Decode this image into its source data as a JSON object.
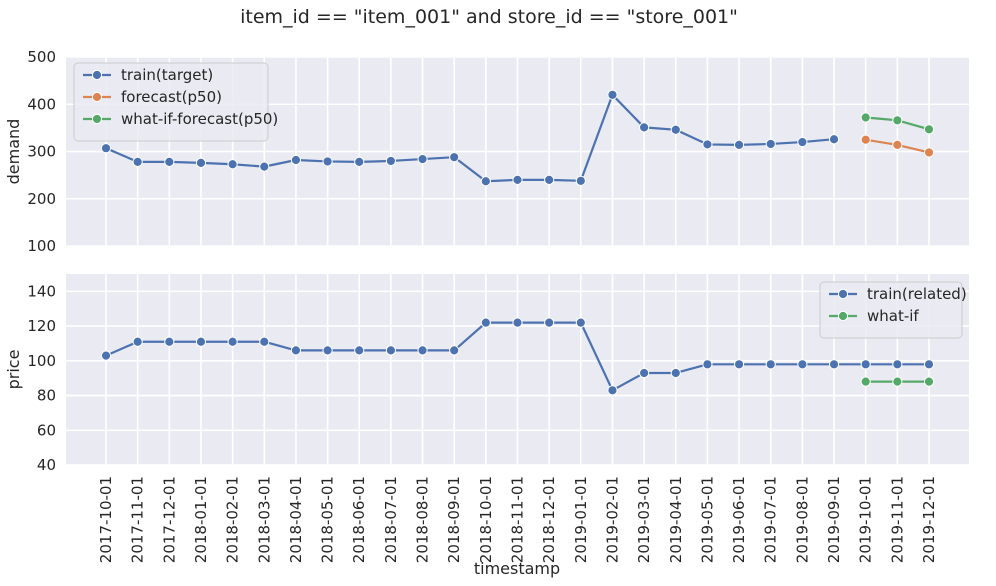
{
  "chart_data": {
    "type": "line",
    "title": "item_id == \"item_001\" and store_id == \"store_001\"",
    "xlabel": "timestamp",
    "x": [
      "2017-10-01",
      "2017-11-01",
      "2017-12-01",
      "2018-01-01",
      "2018-02-01",
      "2018-03-01",
      "2018-04-01",
      "2018-05-01",
      "2018-06-01",
      "2018-07-01",
      "2018-08-01",
      "2018-09-01",
      "2018-10-01",
      "2018-11-01",
      "2018-12-01",
      "2019-01-01",
      "2019-02-01",
      "2019-03-01",
      "2019-04-01",
      "2019-05-01",
      "2019-06-01",
      "2019-07-01",
      "2019-08-01",
      "2019-09-01",
      "2019-10-01",
      "2019-11-01",
      "2019-12-01"
    ],
    "panels": [
      {
        "ylabel": "demand",
        "ylim": [
          100,
          500
        ],
        "yticks": [
          100,
          200,
          300,
          400,
          500
        ],
        "legend_position": "upper-left",
        "series": [
          {
            "name": "train(target)",
            "color": "#4c72b0",
            "x": [
              "2017-10-01",
              "2017-11-01",
              "2017-12-01",
              "2018-01-01",
              "2018-02-01",
              "2018-03-01",
              "2018-04-01",
              "2018-05-01",
              "2018-06-01",
              "2018-07-01",
              "2018-08-01",
              "2018-09-01",
              "2018-10-01",
              "2018-11-01",
              "2018-12-01",
              "2019-01-01",
              "2019-02-01",
              "2019-03-01",
              "2019-04-01",
              "2019-05-01",
              "2019-06-01",
              "2019-07-01",
              "2019-08-01",
              "2019-09-01"
            ],
            "values": [
              307,
              278,
              278,
              276,
              273,
              268,
              282,
              279,
              278,
              280,
              284,
              288,
              237,
              240,
              240,
              238,
              420,
              351,
              346,
              315,
              314,
              316,
              320,
              326
            ]
          },
          {
            "name": "forecast(p50)",
            "color": "#dd8452",
            "x": [
              "2019-10-01",
              "2019-11-01",
              "2019-12-01"
            ],
            "values": [
              325,
              314,
              298
            ]
          },
          {
            "name": "what-if-forecast(p50)",
            "color": "#55a868",
            "x": [
              "2019-10-01",
              "2019-11-01",
              "2019-12-01"
            ],
            "values": [
              372,
              366,
              347
            ]
          }
        ]
      },
      {
        "ylabel": "price",
        "ylim": [
          40,
          150
        ],
        "yticks": [
          40,
          60,
          80,
          100,
          120,
          140
        ],
        "legend_position": "upper-right",
        "series": [
          {
            "name": "train(related)",
            "color": "#4c72b0",
            "x": [
              "2017-10-01",
              "2017-11-01",
              "2017-12-01",
              "2018-01-01",
              "2018-02-01",
              "2018-03-01",
              "2018-04-01",
              "2018-05-01",
              "2018-06-01",
              "2018-07-01",
              "2018-08-01",
              "2018-09-01",
              "2018-10-01",
              "2018-11-01",
              "2018-12-01",
              "2019-01-01",
              "2019-02-01",
              "2019-03-01",
              "2019-04-01",
              "2019-05-01",
              "2019-06-01",
              "2019-07-01",
              "2019-08-01",
              "2019-09-01",
              "2019-10-01",
              "2019-11-01",
              "2019-12-01"
            ],
            "values": [
              103,
              111,
              111,
              111,
              111,
              111,
              106,
              106,
              106,
              106,
              106,
              106,
              122,
              122,
              122,
              122,
              83,
              93,
              93,
              98,
              98,
              98,
              98,
              98,
              98,
              98,
              98
            ]
          },
          {
            "name": "what-if",
            "color": "#55a868",
            "x": [
              "2019-10-01",
              "2019-11-01",
              "2019-12-01"
            ],
            "values": [
              88,
              88,
              88
            ]
          }
        ]
      }
    ],
    "style": {
      "axes_background": "#eaeaf2",
      "grid": true,
      "grid_color": "#ffffff",
      "text_color": "#262626"
    }
  }
}
